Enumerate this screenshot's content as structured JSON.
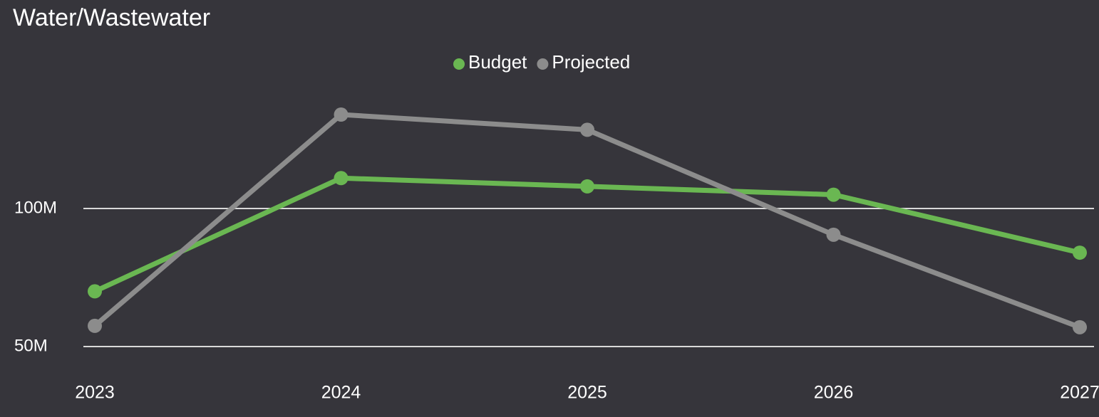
{
  "chart_data": {
    "type": "line",
    "title": "Water/Wastewater",
    "categories": [
      "2023",
      "2024",
      "2025",
      "2026",
      "2027"
    ],
    "series": [
      {
        "name": "Budget",
        "color": "#6ab752",
        "values": [
          70000000,
          111000000,
          108000000,
          105000000,
          84000000
        ]
      },
      {
        "name": "Projected",
        "color": "#8c8c8c",
        "values": [
          57500000,
          134000000,
          128500000,
          90500000,
          57000000
        ]
      }
    ],
    "ylim": [
      50000000,
      142000000
    ],
    "yticks": [
      {
        "value": 50000000,
        "label": "50M"
      },
      {
        "value": 100000000,
        "label": "100M"
      }
    ],
    "grid": true,
    "legend": "top"
  }
}
